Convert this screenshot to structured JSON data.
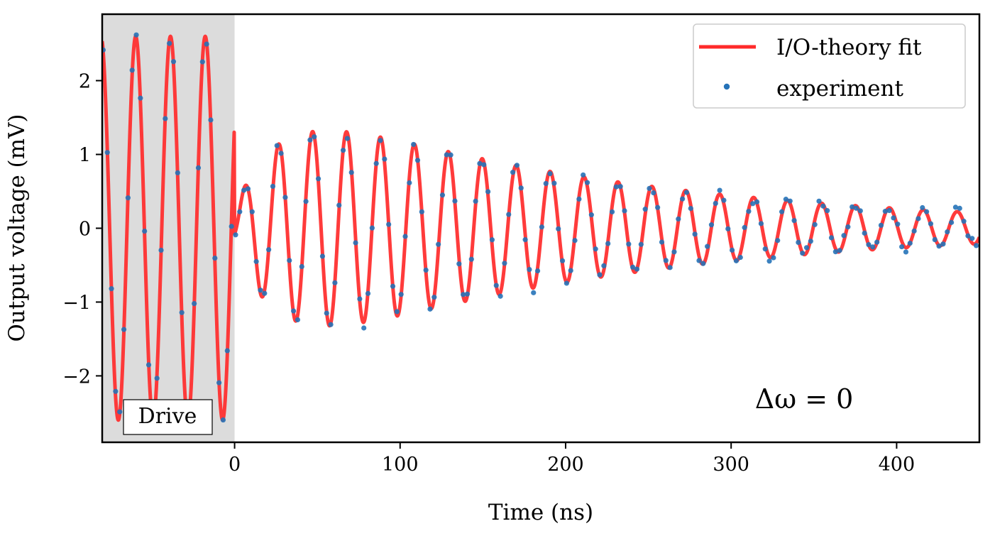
{
  "chart_data": {
    "type": "line",
    "xlabel": "Time (ns)",
    "ylabel": "Output voltage (mV)",
    "xlim": [
      -80,
      450
    ],
    "ylim": [
      -2.9,
      2.9
    ],
    "xticks": [
      0,
      100,
      200,
      300,
      400
    ],
    "yticks": [
      -2,
      -1,
      0,
      1,
      2
    ],
    "xtick_labels": [
      "0",
      "100",
      "200",
      "300",
      "400"
    ],
    "ytick_labels": [
      "−2",
      "−1",
      "0",
      "1",
      "2"
    ],
    "grid": false,
    "legend": {
      "position": "top-right",
      "entries": [
        "I/O-theory fit",
        "experiment"
      ]
    },
    "shaded_region": {
      "x": [
        -80,
        0
      ],
      "label": "Drive"
    },
    "annotation": "Δω = 0",
    "model": {
      "drive_amplitude_mV": 2.6,
      "drive_period_ns": 21.0,
      "free_decay_amplitude_mV": 2.0,
      "free_decay_time_ns": 200,
      "rise_time_ns": 28,
      "free_period_ns": 20.5
    },
    "series": [
      {
        "name": "I/O-theory fit",
        "kind": "line",
        "color": "#ff2a2a"
      },
      {
        "name": "experiment",
        "kind": "scatter",
        "color": "#2673b8",
        "sample_spacing_ns": 2.5
      }
    ]
  }
}
